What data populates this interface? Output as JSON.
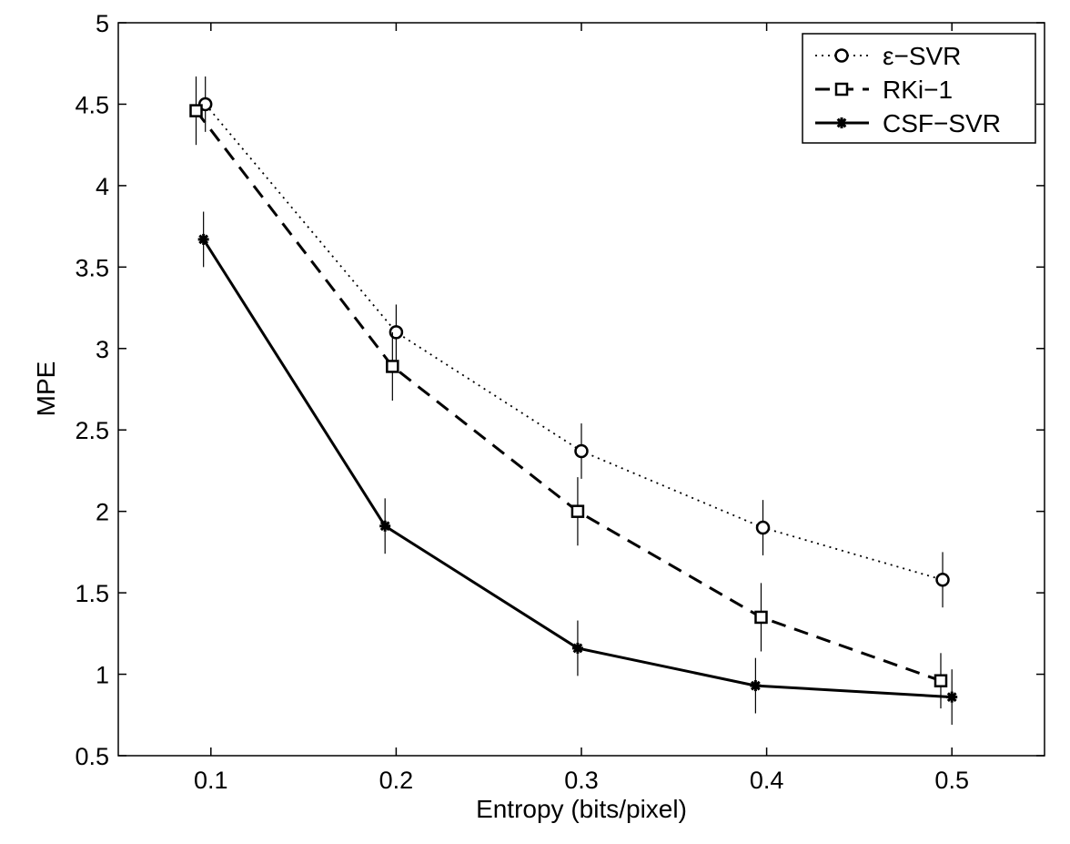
{
  "chart_data": {
    "type": "line",
    "title": "",
    "xlabel": "Entropy (bits/pixel)",
    "ylabel": "MPE",
    "xlim": [
      0.05,
      0.55
    ],
    "ylim": [
      0.5,
      5
    ],
    "xticks": [
      0.1,
      0.2,
      0.3,
      0.4,
      0.5
    ],
    "xtick_labels": [
      "0.1",
      "0.2",
      "0.3",
      "0.4",
      "0.5"
    ],
    "yticks": [
      0.5,
      1,
      1.5,
      2,
      2.5,
      3,
      3.5,
      4,
      4.5,
      5
    ],
    "ytick_labels": [
      "0.5",
      "1",
      "1.5",
      "2",
      "2.5",
      "3",
      "3.5",
      "4",
      "4.5",
      "5"
    ],
    "grid": false,
    "legend_position": "top-right",
    "series": [
      {
        "name": "ε−SVR",
        "line_style": "dotted",
        "marker": "circle",
        "x": [
          0.097,
          0.2,
          0.3,
          0.398,
          0.495
        ],
        "y": [
          4.5,
          3.1,
          2.37,
          1.9,
          1.58
        ],
        "err": [
          0.17,
          0.17,
          0.17,
          0.17,
          0.17
        ]
      },
      {
        "name": "RKi−1",
        "line_style": "dashed",
        "marker": "square",
        "x": [
          0.092,
          0.198,
          0.298,
          0.397,
          0.494
        ],
        "y": [
          4.46,
          2.89,
          2.0,
          1.35,
          0.96
        ],
        "err": [
          0.21,
          0.21,
          0.21,
          0.21,
          0.17
        ]
      },
      {
        "name": "CSF−SVR",
        "line_style": "solid",
        "marker": "star",
        "x": [
          0.096,
          0.194,
          0.298,
          0.394,
          0.5
        ],
        "y": [
          3.67,
          1.91,
          1.16,
          0.93,
          0.86
        ],
        "err": [
          0.17,
          0.17,
          0.17,
          0.17,
          0.17
        ]
      }
    ]
  }
}
